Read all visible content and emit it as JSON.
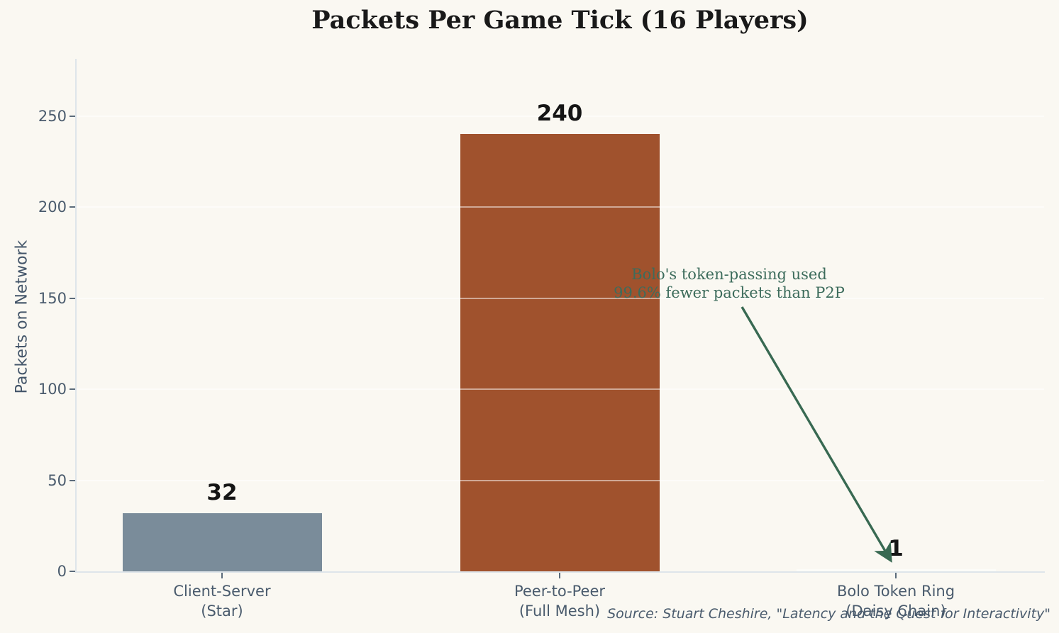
{
  "chart_data": {
    "type": "bar",
    "title": "Packets Per Game Tick (16 Players)",
    "ylabel": "Packets on Network",
    "xlabel": "",
    "categories": [
      [
        "Client-Server",
        "(Star)"
      ],
      [
        "Peer-to-Peer",
        "(Full Mesh)"
      ],
      [
        "Bolo Token Ring",
        "(Daisy Chain)"
      ]
    ],
    "values": [
      32,
      240,
      1
    ],
    "value_labels": [
      "32",
      "240",
      "1"
    ],
    "bar_colors": [
      "#7a8c9a",
      "#a0522d",
      "#fcfcf8"
    ],
    "yticks": [
      0,
      50,
      100,
      150,
      200,
      250
    ],
    "ylim": [
      0,
      281
    ],
    "grid": true,
    "legend_position": "none",
    "background_color": "#faf8f2",
    "text_color": "#4a5b6d",
    "title_color": "#191919",
    "annotation": {
      "lines": [
        "Bolo's token-passing used",
        "99.6% fewer packets than P2P"
      ],
      "color": "#3d6c5c",
      "arrow_color": "#386952",
      "points_to": "Bolo Token Ring"
    },
    "source": "Source: Stuart Cheshire, \"Latency and the Quest for Interactivity\""
  }
}
